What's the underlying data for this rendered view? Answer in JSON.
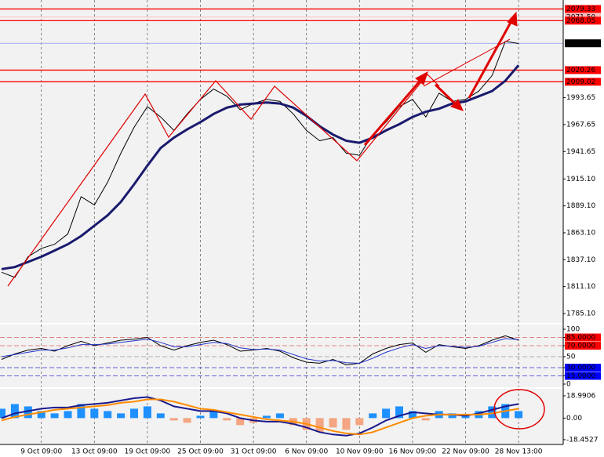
{
  "chart_data": [
    {
      "type": "line",
      "categories": [
        null,
        null,
        null,
        "9 Oct 09:00",
        null,
        null,
        null,
        "13 Oct 09:00",
        null,
        null,
        null,
        "19 Oct 09:00",
        null,
        null,
        null,
        "25 Oct 09:00",
        null,
        null,
        null,
        "31 Oct 09:00",
        null,
        null,
        null,
        "6 Nov 09:00",
        null,
        null,
        null,
        "10 Nov 09:00",
        null,
        null,
        null,
        "16 Nov 09:00",
        null,
        null,
        null,
        "22 Nov 09:00",
        null,
        null,
        null,
        "28 Nov 13:00"
      ],
      "series": [
        {
          "color": "#000000",
          "values": [
            1825,
            1820,
            1840,
            1848,
            1852,
            1862,
            1898,
            1890,
            1912,
            1940,
            1965,
            1985,
            1975,
            1962,
            1978,
            1992,
            2002,
            1995,
            1982,
            1988,
            1992,
            1990,
            1978,
            1962,
            1952,
            1955,
            1940,
            1938,
            1958,
            1970,
            1985,
            1992,
            1975,
            1998,
            1990,
            1992,
            2000,
            2015,
            2048,
            2046
          ]
        },
        {
          "color": "#1a1a6e",
          "values": [
            1828,
            1830,
            1835,
            1840,
            1846,
            1852,
            1860,
            1870,
            1880,
            1893,
            1910,
            1928,
            1945,
            1955,
            1963,
            1970,
            1978,
            1984,
            1987,
            1988,
            1989,
            1988,
            1984,
            1976,
            1966,
            1958,
            1952,
            1950,
            1955,
            1962,
            1968,
            1975,
            1980,
            1983,
            1988,
            1990,
            1995,
            2000,
            2010,
            2025
          ]
        }
      ],
      "ylim": [
        1776,
        2088
      ],
      "yticks": [
        {
          "value": 1785.1,
          "label": "1785.10"
        },
        {
          "value": 1811.1,
          "label": "1811.10"
        },
        {
          "value": 1837.1,
          "label": "1837.10"
        },
        {
          "value": 1863.1,
          "label": "1863.10"
        },
        {
          "value": 1889.1,
          "label": "1889.10"
        },
        {
          "value": 1915.1,
          "label": "1915.10"
        },
        1941.65,
        1967.65,
        1993.65
      ],
      "levels": [
        {
          "value": 2079.33,
          "color": "#ff0000"
        },
        {
          "value": 2071.5,
          "label": "2071.50",
          "color": "#ffbbbb"
        },
        {
          "value": 2068.05,
          "color": "#ff0000"
        },
        {
          "value": 2046.18,
          "color": "#000000"
        },
        {
          "value": 2020.26,
          "color": "#ff0000"
        },
        {
          "value": 2009.02,
          "color": "#ff0000"
        }
      ],
      "grid": true
    },
    {
      "type": "line",
      "series": [
        {
          "color": "#000000",
          "values": [
            45,
            55,
            62,
            65,
            60,
            70,
            78,
            70,
            75,
            80,
            82,
            85,
            70,
            62,
            70,
            76,
            80,
            72,
            60,
            62,
            65,
            60,
            48,
            40,
            38,
            45,
            35,
            38,
            55,
            65,
            72,
            75,
            58,
            72,
            68,
            65,
            70,
            80,
            88,
            80
          ]
        },
        {
          "color": "#2233cc",
          "values": [
            50,
            54,
            58,
            62,
            62,
            66,
            72,
            72,
            73,
            76,
            79,
            82,
            76,
            68,
            68,
            72,
            76,
            74,
            66,
            63,
            64,
            62,
            54,
            46,
            42,
            43,
            39,
            38,
            47,
            58,
            66,
            72,
            65,
            70,
            69,
            67,
            69,
            76,
            83,
            81
          ]
        }
      ],
      "ylim": [
        -5.7,
        108.6
      ],
      "yticks": [
        100,
        {
          "value": 85,
          "label": "85.0000"
        },
        {
          "value": 70,
          "label": "70.0000"
        },
        50,
        {
          "value": 30,
          "label": "30.0000"
        },
        {
          "value": 15,
          "label": "15.0000"
        },
        0
      ]
    },
    {
      "type": "bar",
      "values": [
        8,
        12,
        10,
        6,
        4,
        6,
        12,
        8,
        6,
        4,
        8,
        10,
        4,
        -2,
        -4,
        2,
        6,
        -2,
        -6,
        -4,
        2,
        4,
        -6,
        -10,
        -12,
        -8,
        -10,
        -6,
        4,
        8,
        10,
        6,
        -2,
        6,
        4,
        3,
        6,
        10,
        12,
        6
      ],
      "color": "#1e90ff",
      "negative_color": "#f4a582",
      "series": [
        {
          "color": "#1a1a8e",
          "values": [
            0,
            4,
            6,
            8,
            9,
            9,
            11,
            12,
            13,
            15,
            17,
            18,
            15,
            10,
            8,
            6,
            6,
            4,
            0,
            -2,
            -3,
            -3,
            -5,
            -8,
            -12,
            -14,
            -15,
            -13,
            -8,
            -2,
            2,
            5,
            4,
            3,
            3,
            2,
            4,
            7,
            10,
            12
          ]
        },
        {
          "color": "#ff8c00",
          "values": [
            -2,
            1,
            3,
            5,
            7,
            8,
            9,
            10,
            11,
            13,
            14,
            16,
            16,
            14,
            11,
            8,
            7,
            5,
            3,
            1,
            -1,
            -2,
            -3,
            -5,
            -8,
            -11,
            -13,
            -14,
            -12,
            -8,
            -4,
            0,
            2,
            3,
            3,
            3,
            3,
            4,
            6,
            8
          ]
        }
      ],
      "ylim": [
        -22.5,
        25
      ],
      "yticks": [
        18.9906,
        {
          "value": 0,
          "label": "0.00"
        },
        -18.4527
      ]
    }
  ]
}
